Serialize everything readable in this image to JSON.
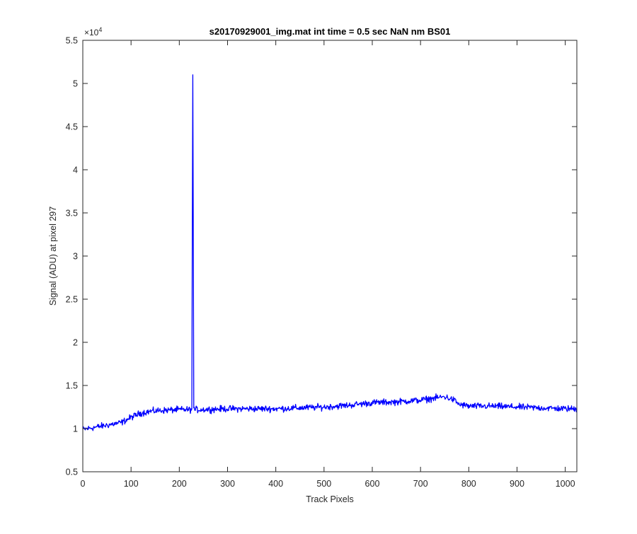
{
  "figure": {
    "background": "#ffffff",
    "axes_color": "#262626"
  },
  "chart_data": {
    "type": "line",
    "title": "s20170929001_img.mat int time = 0.5 sec  NaN nm BS01",
    "xlabel": "Track Pixels",
    "ylabel": "Signal (ADU) at pixel 297",
    "xlim": [
      0,
      1024
    ],
    "ylim": [
      5000,
      55000
    ],
    "x_ticks": [
      0,
      100,
      200,
      300,
      400,
      500,
      600,
      700,
      800,
      900,
      1000
    ],
    "x_tick_labels": [
      "0",
      "100",
      "200",
      "300",
      "400",
      "500",
      "600",
      "700",
      "800",
      "900",
      "1000"
    ],
    "y_ticks": [
      5000,
      10000,
      15000,
      20000,
      25000,
      30000,
      35000,
      40000,
      45000,
      50000,
      55000
    ],
    "y_tick_labels": [
      "0.5",
      "1",
      "1.5",
      "2",
      "2.5",
      "3",
      "3.5",
      "4",
      "4.5",
      "5",
      "5.5"
    ],
    "y_exponent_label": "×10",
    "y_exponent_power": "4",
    "grid": false,
    "legend": "none",
    "line_color": "#0000ff",
    "series": [
      {
        "baseline_x": [
          0,
          20,
          40,
          60,
          80,
          100,
          120,
          140,
          160,
          200,
          240,
          300,
          400,
          500,
          550,
          600,
          650,
          700,
          750,
          770,
          780,
          800,
          850,
          900,
          950,
          1000,
          1024
        ],
        "baseline_y": [
          9900,
          10100,
          10300,
          10500,
          10700,
          11300,
          11800,
          12000,
          12100,
          12200,
          12200,
          12300,
          12300,
          12500,
          12700,
          13000,
          13100,
          13300,
          13700,
          13300,
          12800,
          12600,
          12600,
          12500,
          12400,
          12300,
          12300
        ],
        "noise_amplitude": 550,
        "spike_x": [
          226,
          227,
          228,
          229,
          230
        ],
        "spike_y": [
          12300,
          34000,
          51000,
          33000,
          12400
        ]
      }
    ]
  }
}
